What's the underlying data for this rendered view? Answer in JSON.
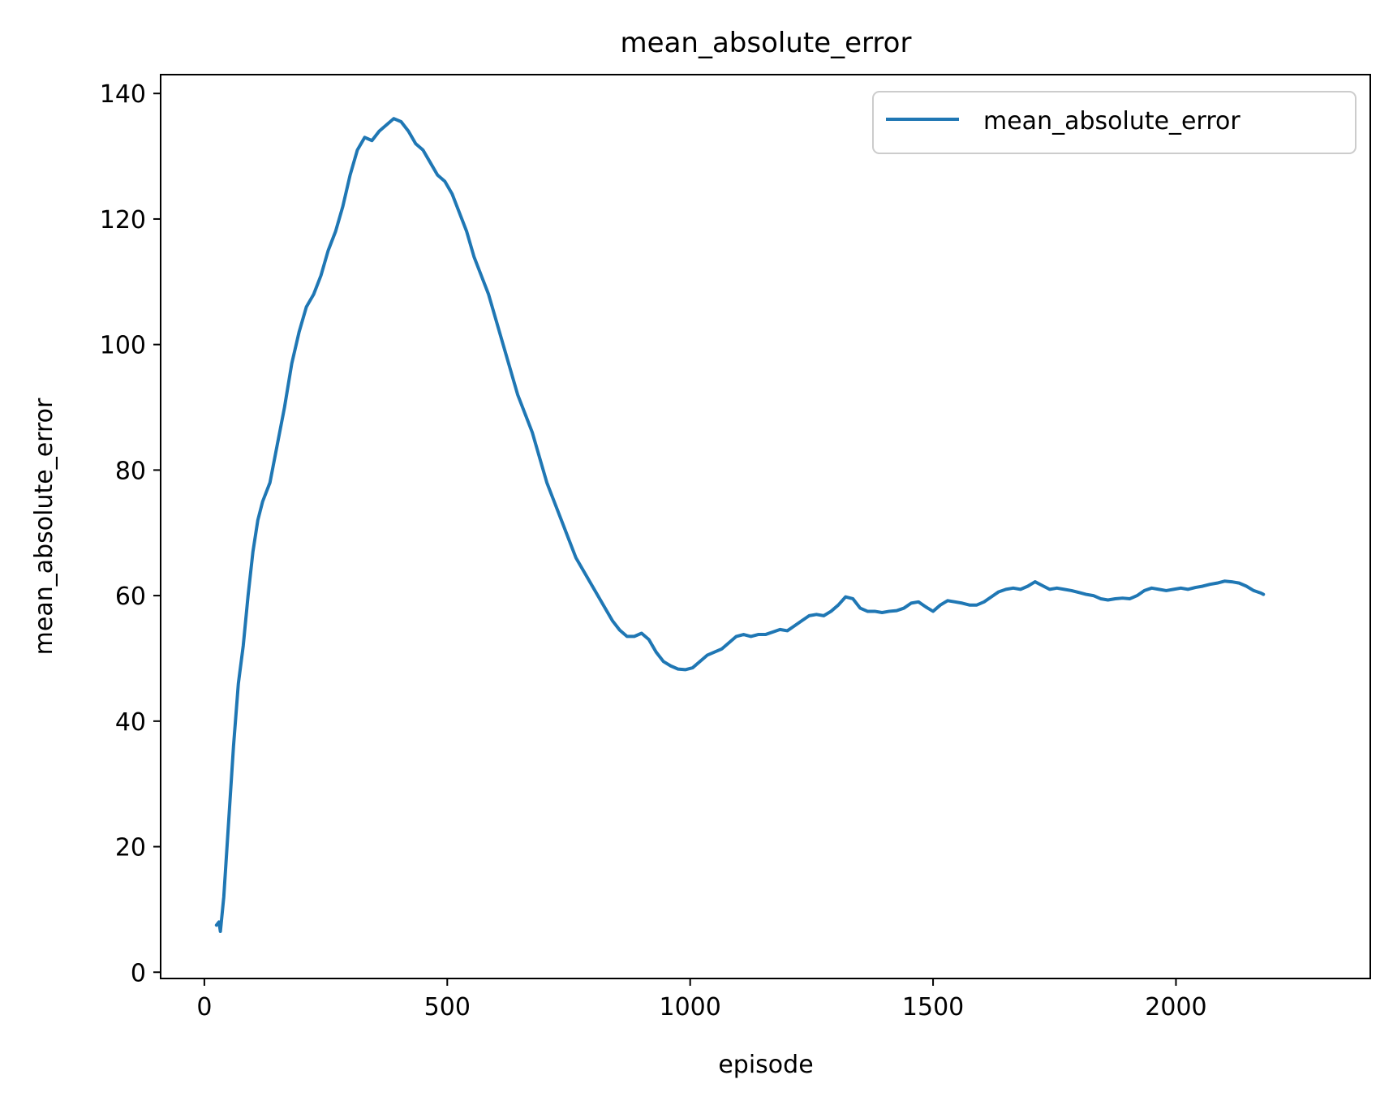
{
  "chart_data": {
    "type": "line",
    "title": "mean_absolute_error",
    "xlabel": "episode",
    "ylabel": "mean_absolute_error",
    "xlim": [
      -90,
      2400
    ],
    "ylim": [
      -1,
      143
    ],
    "xticks": [
      0,
      500,
      1000,
      1500,
      2000
    ],
    "yticks": [
      0,
      20,
      40,
      60,
      80,
      100,
      120,
      140
    ],
    "xtick_labels": [
      "0",
      "500",
      "1000",
      "1500",
      "2000"
    ],
    "ytick_labels": [
      "0",
      "20",
      "40",
      "60",
      "80",
      "100",
      "120",
      "140"
    ],
    "grid": false,
    "legend": {
      "position": "top-right",
      "entries": [
        "mean_absolute_error"
      ]
    },
    "series": [
      {
        "name": "mean_absolute_error",
        "color": "#1f77b4",
        "points": [
          [
            25,
            7.5
          ],
          [
            30,
            8
          ],
          [
            33,
            6.5
          ],
          [
            40,
            12
          ],
          [
            50,
            24
          ],
          [
            60,
            36
          ],
          [
            70,
            46
          ],
          [
            80,
            52
          ],
          [
            90,
            60
          ],
          [
            100,
            67
          ],
          [
            110,
            72
          ],
          [
            120,
            75
          ],
          [
            135,
            78
          ],
          [
            150,
            84
          ],
          [
            165,
            90
          ],
          [
            180,
            97
          ],
          [
            195,
            102
          ],
          [
            210,
            106
          ],
          [
            225,
            108
          ],
          [
            240,
            111
          ],
          [
            255,
            115
          ],
          [
            270,
            118
          ],
          [
            285,
            122
          ],
          [
            300,
            127
          ],
          [
            315,
            131
          ],
          [
            330,
            133
          ],
          [
            345,
            132.5
          ],
          [
            360,
            134
          ],
          [
            375,
            135
          ],
          [
            390,
            136
          ],
          [
            405,
            135.5
          ],
          [
            420,
            134
          ],
          [
            435,
            132
          ],
          [
            450,
            131
          ],
          [
            465,
            129
          ],
          [
            480,
            127
          ],
          [
            495,
            126
          ],
          [
            510,
            124
          ],
          [
            525,
            121
          ],
          [
            540,
            118
          ],
          [
            555,
            114
          ],
          [
            570,
            111
          ],
          [
            585,
            108
          ],
          [
            600,
            104
          ],
          [
            615,
            100
          ],
          [
            630,
            96
          ],
          [
            645,
            92
          ],
          [
            660,
            89
          ],
          [
            675,
            86
          ],
          [
            690,
            82
          ],
          [
            705,
            78
          ],
          [
            720,
            75
          ],
          [
            735,
            72
          ],
          [
            750,
            69
          ],
          [
            765,
            66
          ],
          [
            780,
            64
          ],
          [
            795,
            62
          ],
          [
            810,
            60
          ],
          [
            825,
            58
          ],
          [
            840,
            56
          ],
          [
            855,
            54.5
          ],
          [
            870,
            53.5
          ],
          [
            885,
            53.5
          ],
          [
            900,
            54
          ],
          [
            915,
            53
          ],
          [
            930,
            51
          ],
          [
            945,
            49.5
          ],
          [
            960,
            48.8
          ],
          [
            975,
            48.3
          ],
          [
            990,
            48.2
          ],
          [
            1005,
            48.5
          ],
          [
            1020,
            49.5
          ],
          [
            1035,
            50.5
          ],
          [
            1050,
            51
          ],
          [
            1065,
            51.5
          ],
          [
            1080,
            52.5
          ],
          [
            1095,
            53.5
          ],
          [
            1110,
            53.8
          ],
          [
            1125,
            53.5
          ],
          [
            1140,
            53.8
          ],
          [
            1155,
            53.8
          ],
          [
            1170,
            54.2
          ],
          [
            1185,
            54.6
          ],
          [
            1200,
            54.4
          ],
          [
            1215,
            55.2
          ],
          [
            1230,
            56
          ],
          [
            1245,
            56.8
          ],
          [
            1260,
            57
          ],
          [
            1275,
            56.8
          ],
          [
            1290,
            57.5
          ],
          [
            1305,
            58.5
          ],
          [
            1320,
            59.8
          ],
          [
            1335,
            59.5
          ],
          [
            1350,
            58
          ],
          [
            1365,
            57.5
          ],
          [
            1380,
            57.5
          ],
          [
            1395,
            57.3
          ],
          [
            1410,
            57.5
          ],
          [
            1425,
            57.6
          ],
          [
            1440,
            58
          ],
          [
            1455,
            58.8
          ],
          [
            1470,
            59
          ],
          [
            1485,
            58.2
          ],
          [
            1500,
            57.5
          ],
          [
            1515,
            58.5
          ],
          [
            1530,
            59.2
          ],
          [
            1545,
            59
          ],
          [
            1560,
            58.8
          ],
          [
            1575,
            58.5
          ],
          [
            1590,
            58.5
          ],
          [
            1605,
            59
          ],
          [
            1620,
            59.8
          ],
          [
            1635,
            60.6
          ],
          [
            1650,
            61
          ],
          [
            1665,
            61.2
          ],
          [
            1680,
            61
          ],
          [
            1695,
            61.5
          ],
          [
            1710,
            62.2
          ],
          [
            1725,
            61.6
          ],
          [
            1740,
            61
          ],
          [
            1755,
            61.2
          ],
          [
            1770,
            61
          ],
          [
            1785,
            60.8
          ],
          [
            1800,
            60.5
          ],
          [
            1815,
            60.2
          ],
          [
            1830,
            60
          ],
          [
            1845,
            59.5
          ],
          [
            1860,
            59.3
          ],
          [
            1875,
            59.5
          ],
          [
            1890,
            59.6
          ],
          [
            1905,
            59.5
          ],
          [
            1920,
            60
          ],
          [
            1935,
            60.8
          ],
          [
            1950,
            61.2
          ],
          [
            1965,
            61
          ],
          [
            1980,
            60.8
          ],
          [
            1995,
            61
          ],
          [
            2010,
            61.2
          ],
          [
            2025,
            61
          ],
          [
            2040,
            61.3
          ],
          [
            2055,
            61.5
          ],
          [
            2070,
            61.8
          ],
          [
            2085,
            62
          ],
          [
            2100,
            62.3
          ],
          [
            2115,
            62.2
          ],
          [
            2130,
            62
          ],
          [
            2145,
            61.5
          ],
          [
            2160,
            60.8
          ],
          [
            2175,
            60.4
          ],
          [
            2180,
            60.2
          ]
        ]
      }
    ]
  }
}
